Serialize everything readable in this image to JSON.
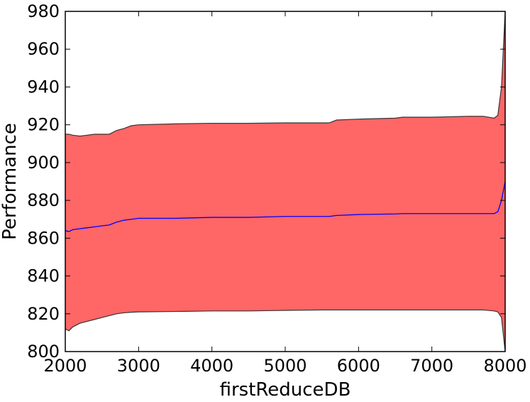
{
  "chart_data": {
    "type": "area",
    "title": "",
    "xlabel": "firstReduceDB",
    "ylabel": "Performance",
    "xlim": [
      2000,
      8000
    ],
    "ylim": [
      800,
      980
    ],
    "grid": false,
    "x_ticks": [
      2000,
      3000,
      4000,
      5000,
      6000,
      7000,
      8000
    ],
    "y_ticks": [
      800,
      820,
      840,
      860,
      880,
      900,
      920,
      940,
      960,
      980
    ],
    "x": [
      2000,
      2050,
      2100,
      2200,
      2300,
      2400,
      2500,
      2600,
      2700,
      2800,
      2900,
      3000,
      3500,
      4000,
      4200,
      4500,
      5000,
      5500,
      5600,
      5700,
      6000,
      6500,
      6600,
      7000,
      7500,
      7700,
      7850,
      7900,
      7950,
      8000
    ],
    "series": [
      {
        "role": "upper",
        "color": "#333333",
        "values": [
          915,
          915,
          914.5,
          914,
          914.5,
          915,
          915,
          915,
          917,
          918,
          919.5,
          920,
          920.5,
          920.8,
          920.8,
          920.8,
          921,
          921,
          921,
          922.5,
          923,
          923.5,
          924,
          924,
          924.5,
          924.5,
          923.5,
          925,
          940,
          980
        ]
      },
      {
        "role": "mean",
        "color": "#0000ff",
        "values": [
          864,
          863.5,
          864.5,
          865,
          865.5,
          866,
          866.5,
          867,
          868.5,
          869.5,
          870,
          870.5,
          870.5,
          871,
          871,
          871,
          871.5,
          871.5,
          871.5,
          872,
          872.5,
          872.8,
          873,
          873,
          873,
          873,
          873,
          874,
          880,
          890
        ]
      },
      {
        "role": "lower",
        "color": "#333333",
        "values": [
          812,
          811,
          813,
          815,
          816,
          817,
          818,
          819,
          820,
          820.5,
          820.8,
          821,
          821.2,
          821.5,
          821.5,
          821.5,
          821.8,
          822,
          822,
          822,
          822,
          822,
          822,
          822,
          822,
          822,
          821.5,
          821,
          818,
          800
        ]
      }
    ],
    "fill_color": "#ff6666",
    "axis_color": "#000000"
  }
}
